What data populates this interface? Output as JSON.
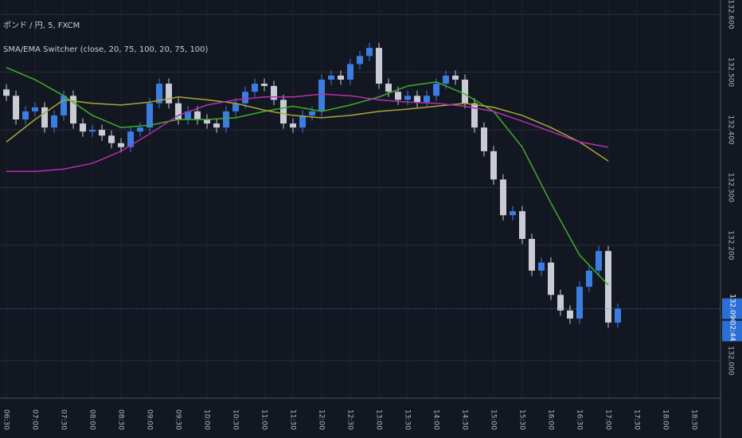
{
  "header": {
    "symbol": "ポンド / 円, 5, FXCM",
    "indicator": "SMA/EMA Switcher (close, 20, 75, 100, 20, 75, 100)"
  },
  "chart_data": {
    "type": "candlestick",
    "x": [
      390,
      400,
      410,
      420,
      430,
      440,
      450,
      460,
      470,
      480,
      490,
      500,
      510,
      520,
      530,
      540,
      550,
      560,
      570,
      580,
      590,
      600,
      610,
      620,
      630,
      640,
      650,
      660,
      670,
      680,
      690,
      700,
      710,
      720,
      730,
      740,
      750,
      760,
      770,
      780,
      790,
      800,
      810,
      820,
      830,
      840,
      850,
      860,
      870,
      880,
      890,
      900,
      910,
      920,
      930,
      940,
      950,
      960,
      970,
      980,
      990,
      1000,
      1010,
      1020,
      1030
    ],
    "open": [
      132.47,
      132.459,
      132.418,
      132.432,
      132.439,
      132.404,
      132.425,
      132.459,
      132.411,
      132.397,
      132.4,
      132.39,
      132.377,
      132.37,
      132.397,
      132.404,
      132.446,
      132.48,
      132.446,
      132.418,
      132.432,
      132.418,
      132.411,
      132.404,
      132.432,
      132.446,
      132.466,
      132.48,
      132.476,
      132.452,
      132.411,
      132.404,
      132.425,
      132.432,
      132.487,
      132.494,
      132.487,
      132.514,
      132.528,
      132.542,
      132.48,
      132.466,
      132.452,
      132.459,
      132.448,
      132.459,
      132.48,
      132.494,
      132.487,
      132.446,
      132.404,
      132.363,
      132.314,
      132.252,
      132.259,
      132.211,
      132.156,
      132.17,
      132.114,
      132.087,
      132.073,
      132.128,
      132.156,
      132.19,
      132.066
    ],
    "high": [
      132.479,
      132.468,
      132.441,
      132.448,
      132.448,
      132.434,
      132.468,
      132.468,
      132.42,
      132.409,
      132.409,
      132.399,
      132.386,
      132.406,
      132.413,
      132.455,
      132.489,
      132.489,
      132.455,
      132.441,
      132.441,
      132.427,
      132.42,
      132.441,
      132.455,
      132.475,
      132.489,
      132.489,
      132.485,
      132.461,
      132.42,
      132.434,
      132.441,
      132.496,
      132.503,
      132.503,
      132.523,
      132.537,
      132.551,
      132.551,
      132.489,
      132.475,
      132.468,
      132.468,
      132.468,
      132.489,
      132.503,
      132.503,
      132.496,
      132.455,
      132.413,
      132.372,
      132.323,
      132.268,
      132.268,
      132.22,
      132.179,
      132.179,
      132.123,
      132.096,
      132.137,
      132.165,
      132.199,
      132.199,
      132.099
    ],
    "low": [
      132.45,
      132.409,
      132.409,
      132.423,
      132.395,
      132.395,
      132.416,
      132.402,
      132.388,
      132.388,
      132.381,
      132.368,
      132.361,
      132.361,
      132.388,
      132.395,
      132.437,
      132.437,
      132.409,
      132.409,
      132.409,
      132.402,
      132.395,
      132.395,
      132.423,
      132.437,
      132.457,
      132.467,
      132.443,
      132.402,
      132.395,
      132.395,
      132.416,
      132.423,
      132.478,
      132.478,
      132.478,
      132.505,
      132.519,
      132.471,
      132.457,
      132.443,
      132.443,
      132.439,
      132.439,
      132.45,
      132.471,
      132.478,
      132.437,
      132.395,
      132.354,
      132.305,
      132.243,
      132.243,
      132.202,
      132.147,
      132.147,
      132.105,
      132.078,
      132.064,
      132.064,
      132.119,
      132.147,
      132.057,
      132.057
    ],
    "close": [
      132.459,
      132.418,
      132.432,
      132.439,
      132.404,
      132.425,
      132.459,
      132.411,
      132.397,
      132.4,
      132.39,
      132.377,
      132.37,
      132.397,
      132.404,
      132.446,
      132.48,
      132.446,
      132.418,
      132.432,
      132.418,
      132.411,
      132.404,
      132.432,
      132.446,
      132.466,
      132.48,
      132.476,
      132.452,
      132.411,
      132.404,
      132.425,
      132.432,
      132.487,
      132.494,
      132.487,
      132.514,
      132.528,
      132.542,
      132.48,
      132.466,
      132.452,
      132.459,
      132.448,
      132.459,
      132.48,
      132.494,
      132.487,
      132.446,
      132.404,
      132.363,
      132.314,
      132.252,
      132.259,
      132.211,
      132.156,
      132.17,
      132.114,
      132.087,
      132.073,
      132.128,
      132.156,
      132.19,
      132.066,
      132.09
    ],
    "up_color": "#3b7de0",
    "down_color": "#c9ccd4",
    "lines": [
      {
        "color": "#3fae2a",
        "x": [
          390,
          420,
          450,
          480,
          510,
          540,
          570,
          600,
          630,
          660,
          690,
          720,
          750,
          780,
          810,
          840,
          870,
          900,
          930,
          960,
          990,
          1020
        ],
        "values": [
          132.508,
          132.487,
          132.459,
          132.425,
          132.404,
          132.408,
          132.418,
          132.418,
          132.421,
          132.432,
          132.441,
          132.432,
          132.443,
          132.457,
          132.476,
          132.483,
          132.462,
          132.432,
          132.37,
          132.273,
          132.183,
          132.131
        ]
      },
      {
        "color": "#a8a832",
        "x": [
          390,
          420,
          450,
          480,
          510,
          540,
          570,
          600,
          630,
          660,
          690,
          720,
          750,
          780,
          810,
          840,
          870,
          900,
          930,
          960,
          990,
          1020
        ],
        "values": [
          132.379,
          132.418,
          132.452,
          132.446,
          132.443,
          132.448,
          132.457,
          132.452,
          132.446,
          132.434,
          132.425,
          132.421,
          132.425,
          132.432,
          132.436,
          132.441,
          132.446,
          132.439,
          132.425,
          132.404,
          132.379,
          132.346
        ]
      },
      {
        "color": "#b52fb0",
        "x": [
          390,
          420,
          450,
          480,
          510,
          540,
          570,
          600,
          630,
          660,
          690,
          720,
          750,
          780,
          810,
          840,
          870,
          900,
          930,
          960,
          990,
          1020
        ],
        "values": [
          132.328,
          132.328,
          132.332,
          132.342,
          132.363,
          132.393,
          132.425,
          132.443,
          132.452,
          132.457,
          132.457,
          132.462,
          132.459,
          132.452,
          132.448,
          132.446,
          132.441,
          132.432,
          132.415,
          132.397,
          132.379,
          132.37
        ]
      }
    ],
    "xlim": [
      383.3,
      1137.5
    ],
    "ylim": [
      131.935,
      132.625
    ],
    "xticks": [
      {
        "value": 390,
        "label": "06:30"
      },
      {
        "value": 420,
        "label": "07:00"
      },
      {
        "value": 450,
        "label": "07:30"
      },
      {
        "value": 480,
        "label": "08:00"
      },
      {
        "value": 510,
        "label": "08:30"
      },
      {
        "value": 540,
        "label": "09:00"
      },
      {
        "value": 570,
        "label": "09:30"
      },
      {
        "value": 600,
        "label": "10:00"
      },
      {
        "value": 630,
        "label": "10:30"
      },
      {
        "value": 660,
        "label": "11:00"
      },
      {
        "value": 690,
        "label": "11:30"
      },
      {
        "value": 720,
        "label": "12:00"
      },
      {
        "value": 750,
        "label": "12:30"
      },
      {
        "value": 780,
        "label": "13:00"
      },
      {
        "value": 810,
        "label": "13:30"
      },
      {
        "value": 840,
        "label": "14:00"
      },
      {
        "value": 870,
        "label": "14:30"
      },
      {
        "value": 900,
        "label": "15:00"
      },
      {
        "value": 930,
        "label": "15:30"
      },
      {
        "value": 960,
        "label": "16:00"
      },
      {
        "value": 990,
        "label": "16:30"
      },
      {
        "value": 1020,
        "label": "17:00"
      },
      {
        "value": 1050,
        "label": "17:30"
      },
      {
        "value": 1080,
        "label": "18:00"
      },
      {
        "value": 1110,
        "label": "18:30"
      }
    ],
    "yticks": [
      {
        "value": 132.6,
        "label": "132.600"
      },
      {
        "value": 132.5,
        "label": "132.500"
      },
      {
        "value": 132.4,
        "label": "132.400"
      },
      {
        "value": 132.3,
        "label": "132.300"
      },
      {
        "value": 132.2,
        "label": "132.200"
      },
      {
        "value": 132.0,
        "label": "132.000"
      }
    ],
    "last_price": {
      "value": 132.09,
      "label": "132.090"
    },
    "countdown": "02:44",
    "grid": true
  }
}
